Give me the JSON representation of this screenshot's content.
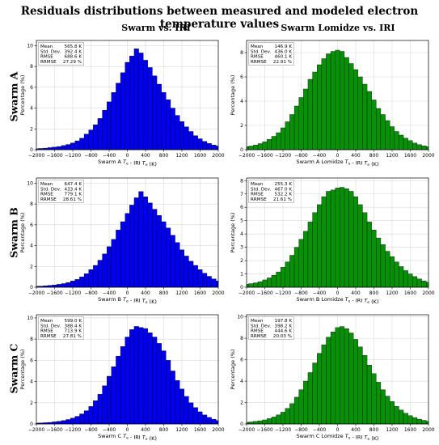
{
  "title": "Residuals distributions between measured and modeled electron temperature values",
  "column_titles": [
    "Swarm vs. IRI",
    "Swarm Lomidze vs. IRI"
  ],
  "row_titles": [
    "Swarm A",
    "Swarm B",
    "Swarm C"
  ],
  "colors": {
    "iri": "#0000ee",
    "lomidze": "#079107"
  },
  "chart_data": [
    {
      "type": "bar",
      "id": "swarm-a-iri",
      "color": "#0000ee",
      "xlabel": "Swarm A T_e - IRI T_e (K)",
      "ylabel": "Percentage (%)",
      "xlim": [
        -2000,
        2000
      ],
      "ylim": [
        0,
        10.5
      ],
      "yticks": [
        0,
        2,
        4,
        6,
        8,
        10
      ],
      "xticks": [
        -2000,
        -1600,
        -1200,
        -800,
        -400,
        0,
        400,
        800,
        1200,
        1600,
        2000
      ],
      "grid": true,
      "bin_width": 100,
      "stats": {
        "labels": [
          "Mean",
          "Std. Dev.",
          "RMSE",
          "RRMSE"
        ],
        "values": [
          "565.8 K",
          "392.4 K",
          "688.6 K",
          "27.29 %"
        ]
      },
      "values": [
        0.02,
        0.03,
        0.03,
        0.04,
        0.05,
        0.06,
        0.08,
        0.1,
        0.12,
        0.15,
        0.2,
        0.25,
        0.3,
        0.4,
        0.5,
        0.65,
        0.85,
        1.1,
        1.5,
        1.9,
        2.4,
        3.0,
        3.8,
        4.6,
        5.5,
        6.4,
        7.4,
        8.4,
        9.0,
        9.7,
        9.3,
        8.6,
        7.9,
        7.1,
        6.3,
        5.5,
        4.8,
        4.0,
        3.3,
        2.7,
        2.2,
        1.75,
        1.35,
        1.05,
        0.8,
        0.6,
        0.45,
        0.35,
        0.25,
        0.18,
        0.12,
        0.08,
        0.05,
        0.03,
        0.02
      ]
    },
    {
      "type": "bar",
      "id": "swarm-a-lomidze",
      "color": "#079107",
      "xlabel": "Swarm A Lomidze T_e - IRI T_e (K)",
      "ylabel": "Percentage (%)",
      "xlim": [
        -2000,
        2000
      ],
      "ylim": [
        0,
        9.0
      ],
      "yticks": [
        0,
        2,
        4,
        6,
        8
      ],
      "xticks": [
        -2000,
        -1600,
        -1200,
        -800,
        -400,
        0,
        400,
        800,
        1200,
        1600,
        2000
      ],
      "grid": true,
      "bin_width": 100,
      "stats": {
        "labels": [
          "Mean",
          "Std. Dev.",
          "RMSE",
          "RRMSE"
        ],
        "values": [
          "146.9 K",
          "436.0 K",
          "460.1 K",
          "22.91 %"
        ]
      },
      "values": [
        0.05,
        0.07,
        0.09,
        0.11,
        0.14,
        0.17,
        0.2,
        0.25,
        0.3,
        0.38,
        0.5,
        0.65,
        0.85,
        1.1,
        1.4,
        1.8,
        2.3,
        2.9,
        3.6,
        4.3,
        5.0,
        5.8,
        6.4,
        7.0,
        7.5,
        7.9,
        8.1,
        8.2,
        8.1,
        7.6,
        7.1,
        6.6,
        6.0,
        5.4,
        4.8,
        4.1,
        3.4,
        2.9,
        2.4,
        1.9,
        1.5,
        1.2,
        0.95,
        0.75,
        0.55,
        0.42,
        0.32,
        0.24,
        0.17,
        0.12,
        0.09,
        0.06,
        0.05,
        0.04,
        0.03
      ]
    },
    {
      "type": "bar",
      "id": "swarm-b-iri",
      "color": "#0000ee",
      "xlabel": "Swarm B T_e - IRI T_e (K)",
      "ylabel": "Percentage (%)",
      "xlim": [
        -2000,
        2000
      ],
      "ylim": [
        0,
        10.5
      ],
      "yticks": [
        0,
        2,
        4,
        6,
        8,
        10
      ],
      "xticks": [
        -2000,
        -1600,
        -1200,
        -800,
        -400,
        0,
        400,
        800,
        1200,
        1600,
        2000
      ],
      "grid": true,
      "bin_width": 100,
      "stats": {
        "labels": [
          "Mean",
          "Std. Dev.",
          "RMSE",
          "RRMSE"
        ],
        "values": [
          "647.4 K",
          "433.4 K",
          "779.1 K",
          "28.61 %"
        ]
      },
      "values": [
        0.02,
        0.03,
        0.03,
        0.04,
        0.05,
        0.06,
        0.07,
        0.09,
        0.11,
        0.14,
        0.18,
        0.22,
        0.28,
        0.35,
        0.45,
        0.6,
        0.75,
        1.0,
        1.3,
        1.7,
        2.1,
        2.6,
        3.2,
        3.9,
        4.6,
        5.5,
        6.3,
        7.1,
        7.9,
        8.6,
        9.2,
        8.7,
        8.1,
        7.5,
        6.9,
        6.3,
        5.7,
        5.0,
        4.3,
        3.6,
        3.0,
        2.5,
        2.1,
        1.7,
        1.35,
        1.05,
        0.8,
        0.6,
        0.45,
        0.32,
        0.22,
        0.15,
        0.1,
        0.06,
        0.04
      ]
    },
    {
      "type": "bar",
      "id": "swarm-b-lomidze",
      "color": "#079107",
      "xlabel": "Swarm B Lomidze T_e - IRI T_e (K)",
      "ylabel": "Percentage (%)",
      "xlim": [
        -2000,
        2000
      ],
      "ylim": [
        0,
        8.2
      ],
      "yticks": [
        0,
        1,
        2,
        3,
        4,
        5,
        6,
        7,
        8
      ],
      "xticks": [
        -2000,
        -1600,
        -1200,
        -800,
        -400,
        0,
        400,
        800,
        1200,
        1600,
        2000
      ],
      "grid": true,
      "bin_width": 100,
      "stats": {
        "labels": [
          "Mean",
          "Std. Dev.",
          "RMSE",
          "RRMSE"
        ],
        "values": [
          "255.3 K",
          "467.0 K",
          "532.2 K",
          "21.61 %"
        ]
      },
      "values": [
        0.05,
        0.06,
        0.08,
        0.1,
        0.12,
        0.15,
        0.18,
        0.22,
        0.27,
        0.33,
        0.42,
        0.55,
        0.7,
        0.9,
        1.15,
        1.5,
        1.9,
        2.4,
        3.0,
        3.6,
        4.2,
        4.9,
        5.6,
        6.2,
        6.8,
        7.2,
        7.3,
        7.45,
        7.5,
        7.4,
        7.2,
        6.8,
        6.2,
        5.6,
        4.9,
        4.3,
        3.7,
        3.2,
        2.7,
        2.3,
        1.9,
        1.55,
        1.25,
        1.0,
        0.8,
        0.62,
        0.48,
        0.37,
        0.28,
        0.2,
        0.14,
        0.1,
        0.07,
        0.05,
        0.04
      ]
    },
    {
      "type": "bar",
      "id": "swarm-c-iri",
      "color": "#0000ee",
      "xlabel": "Swarm C T_e - IRI T_e (K)",
      "ylabel": "Percentage (%)",
      "xlim": [
        -2000,
        2000
      ],
      "ylim": [
        0,
        10.3
      ],
      "yticks": [
        0,
        2,
        4,
        6,
        8,
        10
      ],
      "xticks": [
        -2000,
        -1600,
        -1200,
        -800,
        -400,
        0,
        400,
        800,
        1200,
        1600,
        2000
      ],
      "grid": true,
      "bin_width": 100,
      "stats": {
        "labels": [
          "Mean",
          "Std. Dev.",
          "RMSE",
          "RRMSE"
        ],
        "values": [
          "599.0 K",
          "388.4 K",
          "713.9 K",
          "27.81 %"
        ]
      },
      "values": [
        0.02,
        0.02,
        0.03,
        0.03,
        0.04,
        0.05,
        0.06,
        0.08,
        0.1,
        0.12,
        0.15,
        0.2,
        0.25,
        0.32,
        0.42,
        0.55,
        0.72,
        0.95,
        1.25,
        1.65,
        2.2,
        2.8,
        3.6,
        4.5,
        5.4,
        6.4,
        7.3,
        8.2,
        8.9,
        9.2,
        9.1,
        9.0,
        8.6,
        8.2,
        7.6,
        6.9,
        6.0,
        5.0,
        4.1,
        3.3,
        2.6,
        2.0,
        1.55,
        1.15,
        0.85,
        0.62,
        0.45,
        0.32,
        0.22,
        0.15,
        0.1,
        0.07,
        0.05,
        0.03,
        0.02
      ]
    },
    {
      "type": "bar",
      "id": "swarm-c-lomidze",
      "color": "#079107",
      "xlabel": "Swarm C Lomidze T_e - IRI T_e (K)",
      "ylabel": "Percentage (%)",
      "xlim": [
        -2000,
        2000
      ],
      "ylim": [
        0,
        10.2
      ],
      "yticks": [
        0,
        2,
        4,
        6,
        8,
        10
      ],
      "xticks": [
        -2000,
        -1600,
        -1200,
        -800,
        -400,
        0,
        400,
        800,
        1200,
        1600,
        2000
      ],
      "grid": true,
      "bin_width": 100,
      "stats": {
        "labels": [
          "Mean",
          "Std. Dev.",
          "RMSE",
          "RRMSE"
        ],
        "values": [
          "197.8 K",
          "398.2 K",
          "444.6 K",
          "20.03 %"
        ]
      },
      "values": [
        0.03,
        0.04,
        0.05,
        0.06,
        0.08,
        0.1,
        0.12,
        0.15,
        0.19,
        0.24,
        0.3,
        0.38,
        0.5,
        0.65,
        0.85,
        1.1,
        1.45,
        1.9,
        2.5,
        3.2,
        4.0,
        4.8,
        5.7,
        6.6,
        7.4,
        8.1,
        8.6,
        9.0,
        9.1,
        8.9,
        8.5,
        7.9,
        7.2,
        6.4,
        5.5,
        4.7,
        3.9,
        3.2,
        2.6,
        2.1,
        1.65,
        1.3,
        1.0,
        0.78,
        0.6,
        0.45,
        0.34,
        0.25,
        0.18,
        0.13,
        0.09,
        0.06,
        0.05,
        0.04,
        0.03
      ]
    }
  ]
}
